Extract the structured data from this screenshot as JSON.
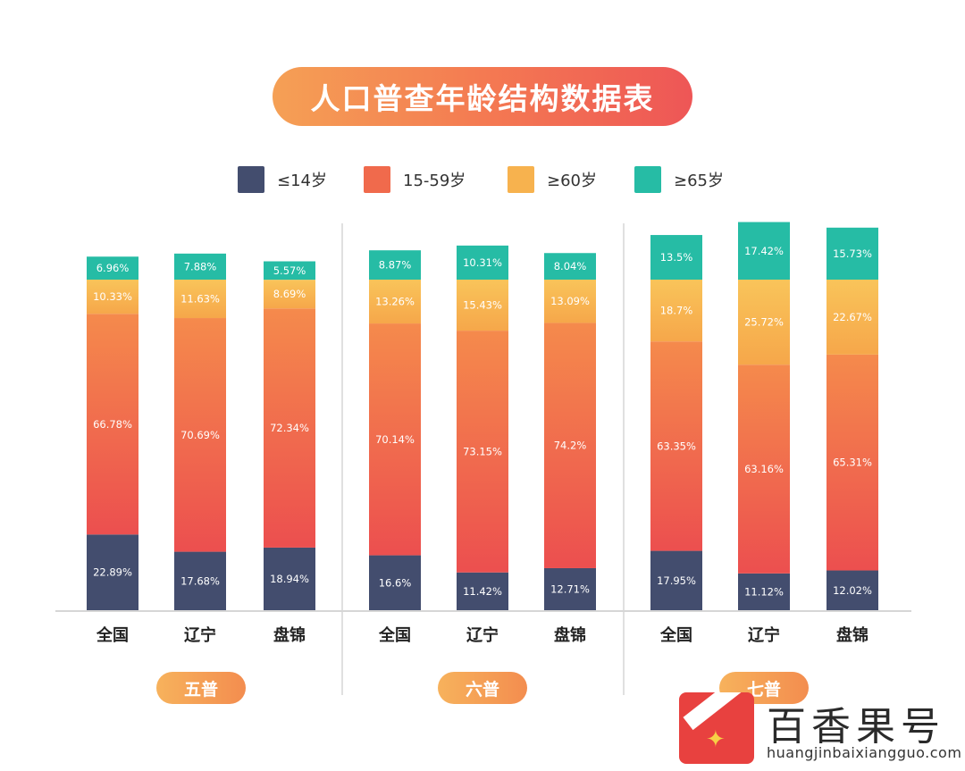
{
  "title": "人口普查年龄结构数据表",
  "legend": [
    {
      "label": "≤14岁",
      "color": "#434d6e"
    },
    {
      "label": "15-59岁",
      "color": "#f06a4c"
    },
    {
      "label": "≥60岁",
      "color": "#f7b24e"
    },
    {
      "label": "≥65岁",
      "color": "#26bca5"
    }
  ],
  "chart_data": {
    "type": "bar",
    "stacked": true,
    "groups": [
      {
        "name": "五普",
        "categories": [
          "全国",
          "辽宁",
          "盘锦"
        ]
      },
      {
        "name": "六普",
        "categories": [
          "全国",
          "辽宁",
          "盘锦"
        ]
      },
      {
        "name": "七普",
        "categories": [
          "全国",
          "辽宁",
          "盘锦"
        ]
      }
    ],
    "series": [
      {
        "name": "≤14岁",
        "values": [
          22.89,
          17.68,
          18.94,
          16.6,
          11.42,
          12.71,
          17.95,
          11.12,
          12.02
        ],
        "labels": [
          "22.89%",
          "17.68%",
          "18.94%",
          "16.6%",
          "11.42%",
          "12.71%",
          "17.95%",
          "11.12%",
          "12.02%"
        ]
      },
      {
        "name": "15-59岁",
        "values": [
          66.78,
          70.69,
          72.34,
          70.14,
          73.15,
          74.2,
          63.35,
          63.16,
          65.31
        ],
        "labels": [
          "66.78%",
          "70.69%",
          "72.34%",
          "70.14%",
          "73.15%",
          "74.2%",
          "63.35%",
          "63.16%",
          "65.31%"
        ]
      },
      {
        "name": "≥60岁",
        "values": [
          10.33,
          11.63,
          8.69,
          13.26,
          15.43,
          13.09,
          18.7,
          25.72,
          22.67
        ],
        "labels": [
          "10.33%",
          "11.63%",
          "8.69%",
          "13.26%",
          "15.43%",
          "13.09%",
          "18.7%",
          "25.72%",
          "22.67%"
        ]
      },
      {
        "name": "≥65岁",
        "values": [
          6.96,
          7.88,
          5.57,
          8.87,
          10.31,
          8.04,
          13.5,
          17.42,
          15.73
        ],
        "labels": [
          "6.96%",
          "7.88%",
          "5.57%",
          "8.87%",
          "10.31%",
          "8.04%",
          "13.5%",
          "17.42%",
          "15.73%"
        ]
      }
    ],
    "grid": false
  },
  "watermark": {
    "name": "百香果号",
    "url": "huangjinbaixiangguo.com"
  }
}
